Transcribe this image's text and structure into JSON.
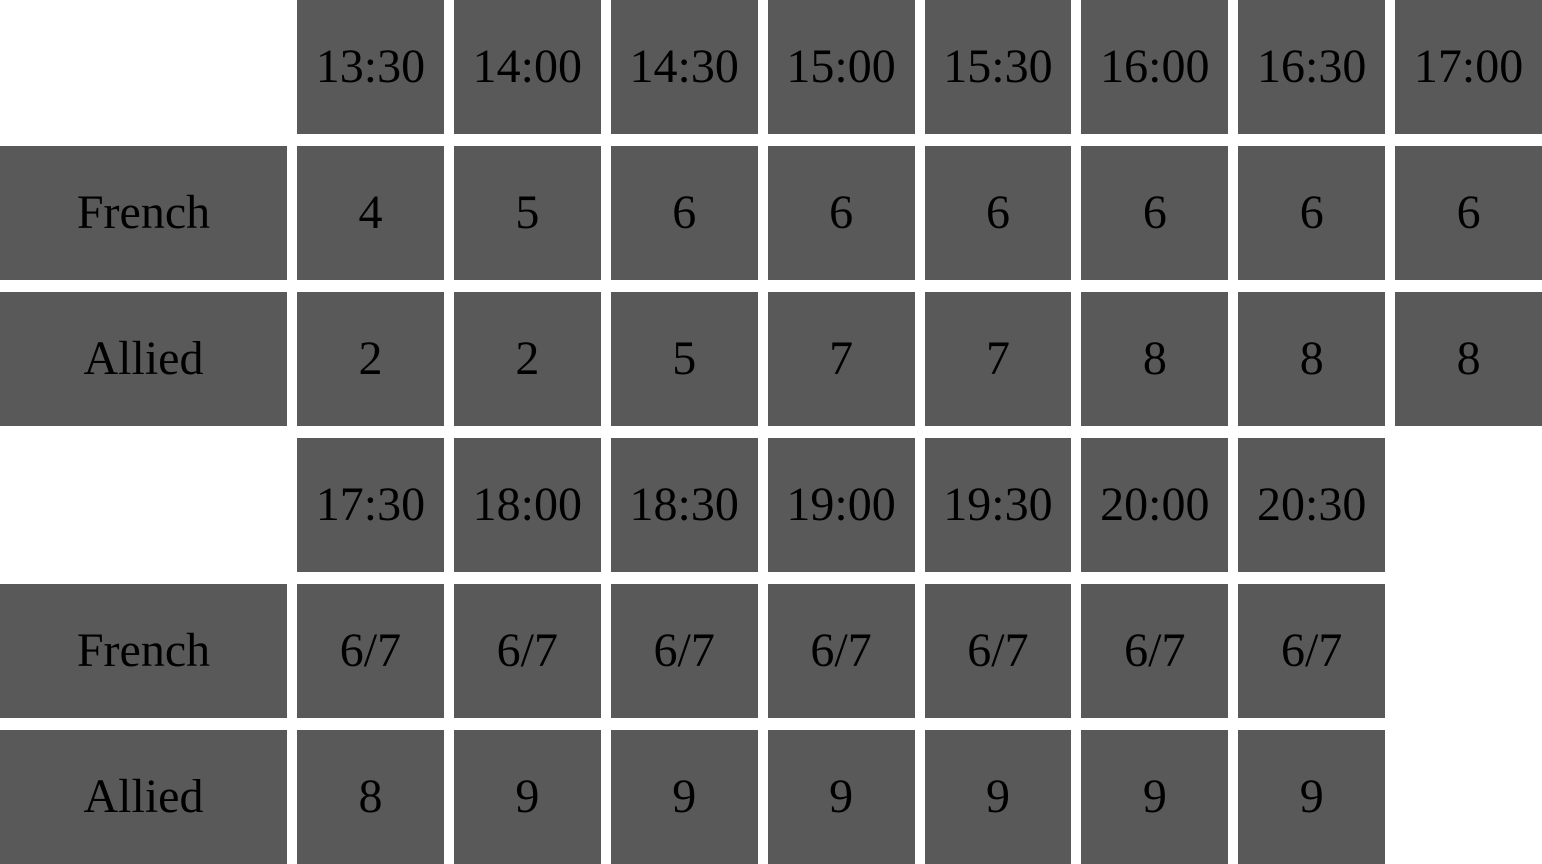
{
  "page": {
    "background_color": "#ffffff",
    "cell_color": "#595959",
    "text_color": "#000000"
  },
  "table": {
    "row_labels": [
      "French",
      "Allied"
    ],
    "sections": [
      {
        "times": [
          "13:30",
          "14:00",
          "14:30",
          "15:00",
          "15:30",
          "16:00",
          "16:30",
          "17:00"
        ],
        "french": [
          "4",
          "5",
          "6",
          "6",
          "6",
          "6",
          "6",
          "6"
        ],
        "allied": [
          "2",
          "2",
          "5",
          "7",
          "7",
          "8",
          "8",
          "8"
        ]
      },
      {
        "times": [
          "17:30",
          "18:00",
          "18:30",
          "19:00",
          "19:30",
          "20:00",
          "20:30"
        ],
        "french": [
          "6/7",
          "6/7",
          "6/7",
          "6/7",
          "6/7",
          "6/7",
          "6/7"
        ],
        "allied": [
          "8",
          "9",
          "9",
          "9",
          "9",
          "9",
          "9"
        ]
      }
    ]
  },
  "chart_data": [
    {
      "type": "table",
      "columns": [
        "",
        "13:30",
        "14:00",
        "14:30",
        "15:00",
        "15:30",
        "16:00",
        "16:30",
        "17:00"
      ],
      "rows": [
        [
          "French",
          "4",
          "5",
          "6",
          "6",
          "6",
          "6",
          "6",
          "6"
        ],
        [
          "Allied",
          "2",
          "2",
          "5",
          "7",
          "7",
          "8",
          "8",
          "8"
        ]
      ]
    },
    {
      "type": "table",
      "columns": [
        "",
        "17:30",
        "18:00",
        "18:30",
        "19:00",
        "19:30",
        "20:00",
        "20:30"
      ],
      "rows": [
        [
          "French",
          "6/7",
          "6/7",
          "6/7",
          "6/7",
          "6/7",
          "6/7",
          "6/7"
        ],
        [
          "Allied",
          "8",
          "9",
          "9",
          "9",
          "9",
          "9",
          "9"
        ]
      ]
    }
  ]
}
